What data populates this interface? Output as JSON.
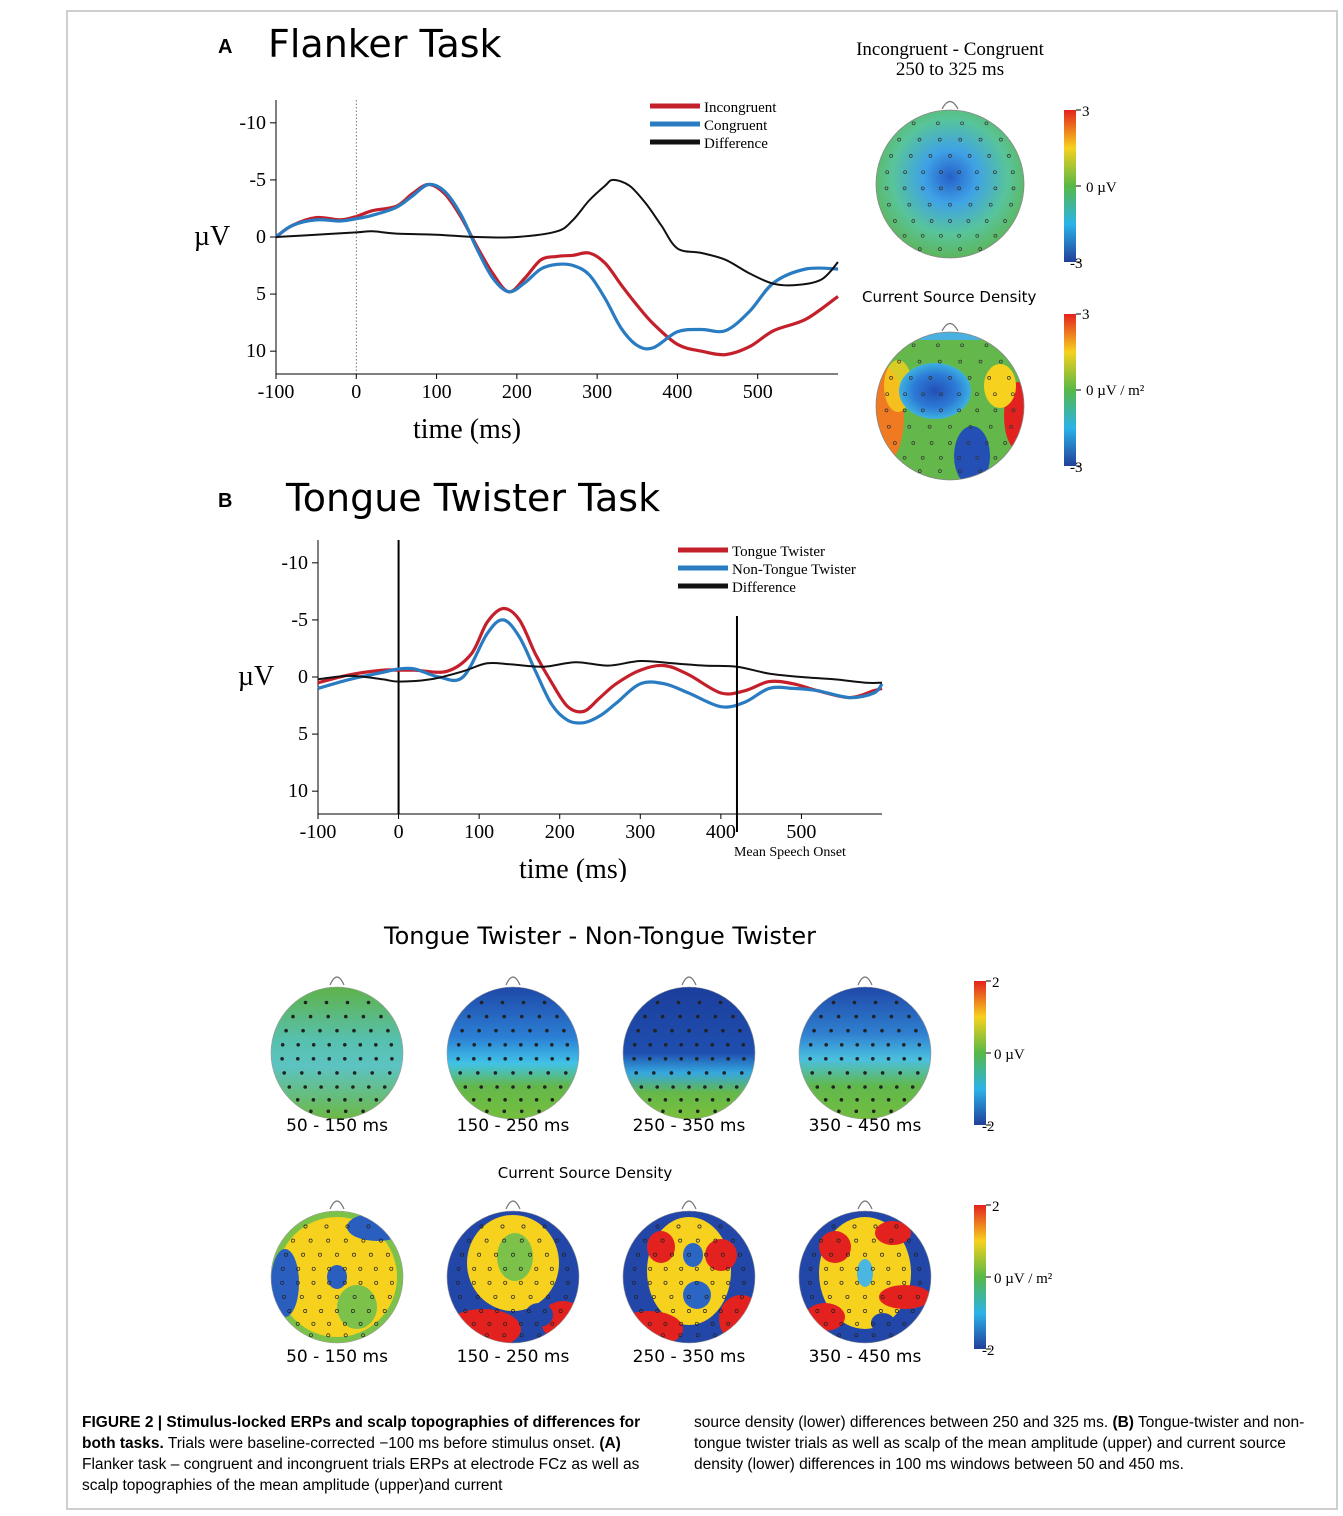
{
  "figure": {
    "panelA": {
      "letter": "A",
      "title": "Flanker Task",
      "topo_heading_line1": "Incongruent - Congruent",
      "topo_heading_line2": "250 to  325 ms",
      "csd_heading": "Current Source Density",
      "scale_amp": {
        "max": "3",
        "mid": "0  µV",
        "min": "-3"
      },
      "scale_csd": {
        "max": "3",
        "mid": "0  µV / m²",
        "min": "-3"
      }
    },
    "panelB": {
      "letter": "B",
      "title": "Tongue Twister Task",
      "speech_onset_label": "Mean Speech Onset",
      "topo_heading": "Tongue Twister - Non-Tongue Twister",
      "csd_heading": "Current Source Density",
      "windows": [
        "50 - 150 ms",
        "150 - 250 ms",
        "250 - 350 ms",
        "350 - 450 ms"
      ],
      "scale_amp": {
        "max": "2",
        "mid": "0  µV",
        "min": "-2"
      },
      "scale_csd": {
        "max": "2",
        "mid": "0  µV / m²",
        "min": "-2"
      }
    },
    "colors": {
      "red": "#c4202c",
      "blue": "#2a7cc2",
      "black": "#111111"
    }
  },
  "chart_data": [
    {
      "type": "line",
      "xlabel": "time (ms)",
      "ylabel": "µV",
      "xlim": [
        -100,
        600
      ],
      "ylim": [
        -12,
        12
      ],
      "y_inverted": true,
      "xticks": [
        "-100",
        "0",
        "100",
        "200",
        "300",
        "400",
        "500"
      ],
      "yticks": [
        "-10",
        "-5",
        "0",
        "5",
        "10"
      ],
      "series": [
        {
          "name": "Incongruent",
          "color": "#c4202c",
          "x": [
            -100,
            -80,
            -50,
            -20,
            0,
            20,
            50,
            70,
            90,
            110,
            130,
            150,
            170,
            190,
            210,
            230,
            250,
            270,
            290,
            310,
            330,
            350,
            370,
            400,
            430,
            460,
            490,
            520,
            560,
            600
          ],
          "y": [
            0,
            -1,
            -1.7,
            -1.5,
            -1.8,
            -2.3,
            -2.7,
            -3.8,
            -4.6,
            -3.8,
            -1.8,
            0.8,
            3.2,
            4.8,
            3.6,
            2,
            1.7,
            1.6,
            1.4,
            2.3,
            4.2,
            6,
            7.6,
            9.4,
            10,
            10.3,
            9.6,
            8.2,
            7.2,
            5.2
          ]
        },
        {
          "name": "Congruent",
          "color": "#2a7cc2",
          "x": [
            -100,
            -80,
            -50,
            -20,
            0,
            20,
            50,
            70,
            90,
            110,
            130,
            150,
            170,
            190,
            210,
            230,
            250,
            270,
            290,
            310,
            330,
            350,
            370,
            400,
            430,
            460,
            490,
            520,
            560,
            600
          ],
          "y": [
            0,
            -1,
            -1.5,
            -1.4,
            -1.6,
            -1.9,
            -2.6,
            -3.6,
            -4.6,
            -4,
            -2,
            1,
            3.6,
            4.8,
            4,
            2.8,
            2.4,
            2.5,
            3.3,
            5.4,
            8,
            9.5,
            9.7,
            8.3,
            8.1,
            8.2,
            6.5,
            4,
            2.8,
            2.8
          ]
        },
        {
          "name": "Difference",
          "color": "#111111",
          "x": [
            -100,
            -50,
            0,
            20,
            50,
            100,
            150,
            200,
            250,
            270,
            290,
            310,
            320,
            340,
            360,
            380,
            400,
            430,
            460,
            490,
            520,
            550,
            580,
            600
          ],
          "y": [
            0,
            -0.2,
            -0.4,
            -0.5,
            -0.3,
            -0.2,
            0,
            0,
            -0.5,
            -1.5,
            -3.2,
            -4.5,
            -5,
            -4.5,
            -3,
            -1,
            1,
            1.4,
            2,
            3.2,
            4.1,
            4.2,
            3.7,
            2.2
          ]
        }
      ]
    },
    {
      "type": "line",
      "xlabel": "time (ms)",
      "ylabel": "µV",
      "xlim": [
        -100,
        600
      ],
      "ylim": [
        -12,
        12
      ],
      "y_inverted": true,
      "xticks": [
        "-100",
        "0",
        "100",
        "200",
        "300",
        "400",
        "500"
      ],
      "yticks": [
        "-10",
        "-5",
        "0",
        "5",
        "10"
      ],
      "series": [
        {
          "name": "Tongue Twister",
          "color": "#c4202c",
          "x": [
            -100,
            -60,
            -20,
            0,
            20,
            60,
            90,
            110,
            130,
            150,
            170,
            190,
            210,
            230,
            250,
            270,
            300,
            330,
            360,
            400,
            430,
            460,
            490,
            520,
            560,
            590,
            600
          ],
          "y": [
            0.5,
            -0.2,
            -0.6,
            -0.6,
            -0.6,
            -0.5,
            -2,
            -4.8,
            -6,
            -5,
            -2,
            0.5,
            2.6,
            3,
            1.8,
            0.6,
            -0.6,
            -1,
            -0.2,
            1.4,
            1.2,
            0.4,
            0.6,
            1.2,
            1.8,
            1.2,
            1
          ]
        },
        {
          "name": "Non-Tongue Twister",
          "color": "#2a7cc2",
          "x": [
            -100,
            -60,
            -20,
            0,
            20,
            50,
            80,
            110,
            130,
            150,
            170,
            190,
            210,
            230,
            250,
            270,
            300,
            330,
            360,
            400,
            430,
            460,
            490,
            520,
            560,
            590,
            600
          ],
          "y": [
            1,
            0.2,
            -0.4,
            -0.7,
            -0.7,
            0,
            0,
            -3.8,
            -5,
            -3.5,
            -0.5,
            2.4,
            3.8,
            4,
            3.4,
            2.3,
            0.6,
            0.6,
            1.4,
            2.6,
            2.2,
            1,
            1,
            1.2,
            1.8,
            1.4,
            0.6
          ]
        },
        {
          "name": "Difference",
          "color": "#111111",
          "x": [
            -100,
            -60,
            -20,
            0,
            40,
            80,
            110,
            140,
            180,
            220,
            260,
            300,
            340,
            380,
            420,
            460,
            500,
            540,
            580,
            600
          ],
          "y": [
            0.2,
            -0.1,
            0.2,
            0.4,
            0.2,
            -0.5,
            -1.2,
            -1.1,
            -0.9,
            -1.3,
            -1.0,
            -1.4,
            -1.2,
            -1.0,
            -0.9,
            -0.3,
            0,
            0.2,
            0.5,
            0.5
          ]
        }
      ]
    }
  ],
  "caption": {
    "label": "FIGURE 2 | Stimulus-locked ERPs and scalp topographies of differences for both tasks.",
    "left_text": " Trials were baseline-corrected −100 ms before stimulus onset. ",
    "a_label": "(A)",
    "a_text": " Flanker task – congruent and incongruent trials ERPs at electrode FCz as well as scalp topographies of the mean amplitude (upper)and current",
    "right_text1": "source density (lower) differences between 250 and 325 ms. ",
    "b_label": "(B)",
    "right_text2": " Tongue-twister and non-tongue twister trials as well as scalp of the mean amplitude (upper) and current source density (lower) differences in 100 ms windows between 50 and 450 ms."
  }
}
